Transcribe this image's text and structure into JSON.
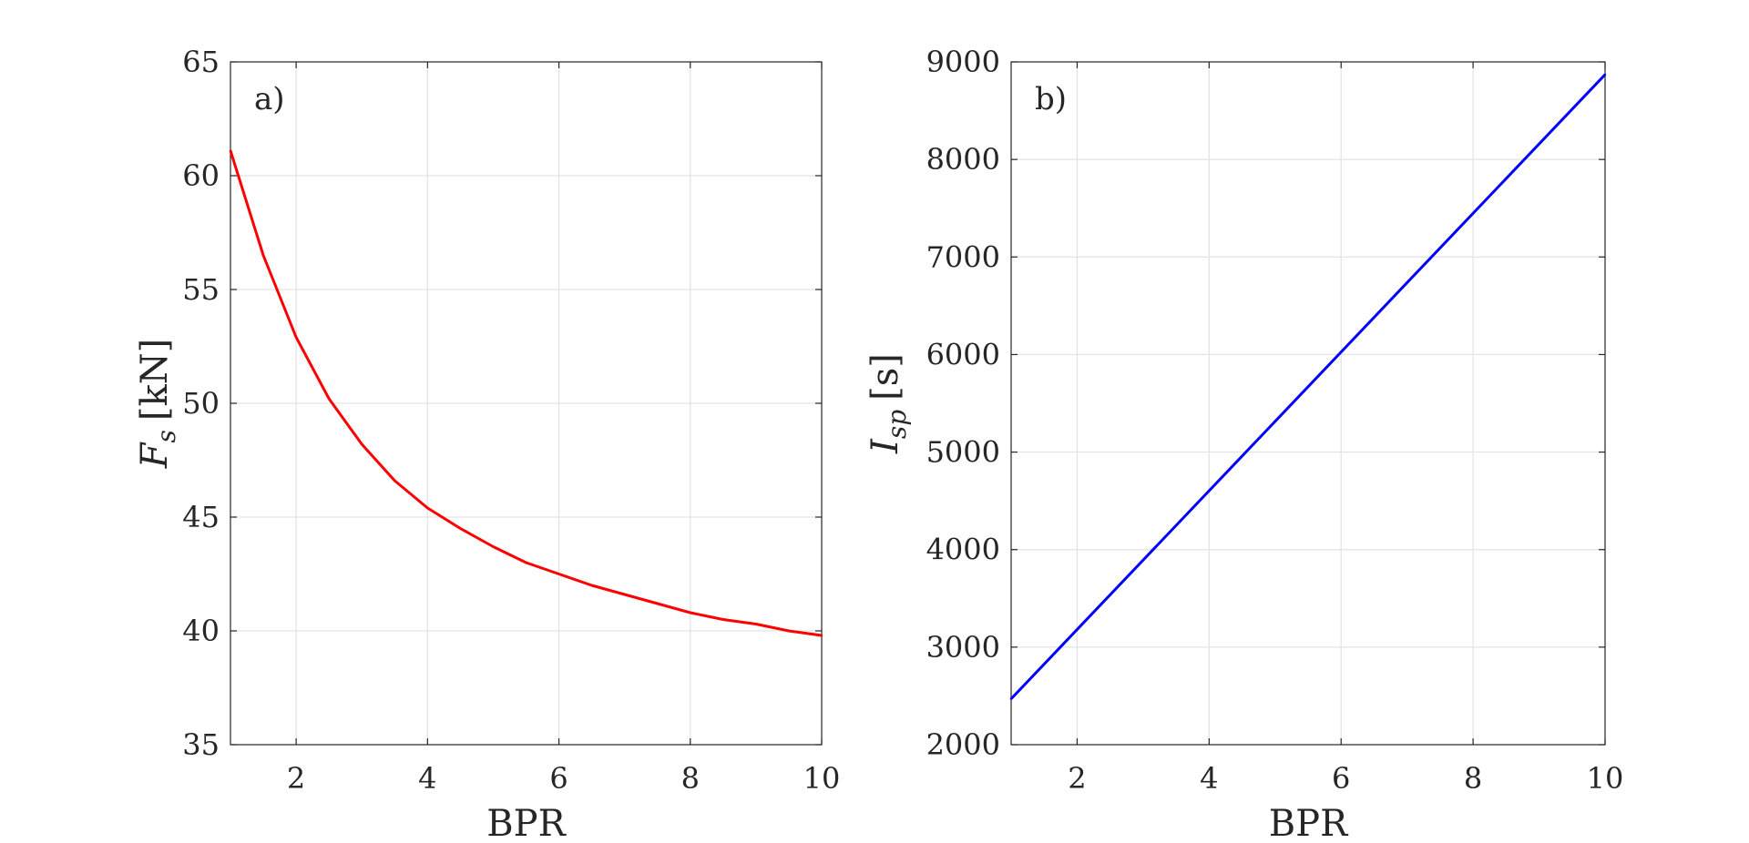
{
  "chart_data": [
    {
      "type": "line",
      "panel_label": "a)",
      "xlabel": "BPR",
      "ylabel": {
        "symbol": "F",
        "subscript": "s",
        "unit": "[kN]"
      },
      "xlim": [
        1,
        10
      ],
      "ylim": [
        35,
        65
      ],
      "xticks": [
        2,
        4,
        6,
        8,
        10
      ],
      "yticks": [
        35,
        40,
        45,
        50,
        55,
        60,
        65
      ],
      "grid": true,
      "series": [
        {
          "color": "#ff0000",
          "x": [
            1,
            1.5,
            2,
            2.5,
            3,
            3.5,
            4,
            4.5,
            5,
            5.5,
            6,
            6.5,
            7,
            7.5,
            8,
            8.5,
            9,
            9.5,
            10
          ],
          "y": [
            61.1,
            56.5,
            52.9,
            50.2,
            48.2,
            46.6,
            45.4,
            44.5,
            43.7,
            43.0,
            42.5,
            42.0,
            41.6,
            41.2,
            40.8,
            40.5,
            40.3,
            40.0,
            39.8
          ]
        }
      ]
    },
    {
      "type": "line",
      "panel_label": "b)",
      "xlabel": "BPR",
      "ylabel": {
        "symbol": "I",
        "subscript": "sp",
        "unit": "[s]"
      },
      "xlim": [
        1,
        10
      ],
      "ylim": [
        2000,
        9000
      ],
      "xticks": [
        2,
        4,
        6,
        8,
        10
      ],
      "yticks": [
        2000,
        3000,
        4000,
        5000,
        6000,
        7000,
        8000,
        9000
      ],
      "grid": true,
      "series": [
        {
          "color": "#0000ff",
          "x": [
            1,
            10
          ],
          "y": [
            2470,
            8870
          ]
        }
      ]
    }
  ]
}
